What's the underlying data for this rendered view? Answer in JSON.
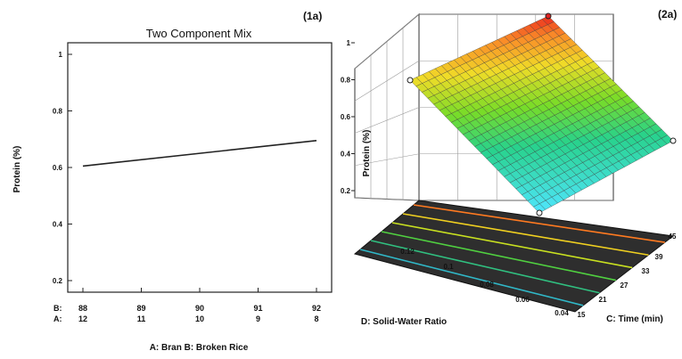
{
  "panel_a": {
    "tag": "(1a)",
    "title": "Two Component Mix",
    "ylabel": "Protein  (%)",
    "xlabel": "A: Bran   B: Broken Rice",
    "row_b_label": "B:",
    "row_a_label": "A:"
  },
  "panel_b": {
    "tag": "(2a)",
    "zlabel": "Protein  (%)",
    "xlabel": "D: Solid-Water Ratio",
    "ylabel": "C: Time (min)"
  },
  "chart_data": [
    {
      "type": "line",
      "title": "Two Component Mix",
      "ylabel": "Protein  (%)",
      "xlabel": "A: Bran   B: Broken Rice",
      "x_B": [
        88,
        89,
        90,
        91,
        92
      ],
      "x_A": [
        12,
        11,
        10,
        9,
        8
      ],
      "yticks": [
        "0.2",
        "0.4",
        "0.6",
        "0.8",
        "1"
      ],
      "ylim": [
        0.2,
        1.0
      ],
      "series": [
        {
          "x_B": [
            88,
            92
          ],
          "y": [
            0.605,
            0.695
          ]
        }
      ]
    },
    {
      "type": "surface",
      "zlabel": "Protein  (%)",
      "xlabel": "D: Solid-Water Ratio",
      "ylabel": "C: Time (min)",
      "d_ticks": [
        "0.04",
        "0.06",
        "0.08",
        "0.1",
        "0.12"
      ],
      "c_ticks": [
        "15",
        "21",
        "27",
        "33",
        "39",
        "45"
      ],
      "z_ticks": [
        "0.2",
        "0.4",
        "0.6",
        "0.8",
        "1"
      ],
      "corners": [
        {
          "d": 0.04,
          "c": 15,
          "z": 0.2
        },
        {
          "d": 0.12,
          "c": 15,
          "z": 0.8
        },
        {
          "d": 0.12,
          "c": 45,
          "z": 1.0
        },
        {
          "d": 0.04,
          "c": 45,
          "z": 0.45
        }
      ]
    }
  ]
}
